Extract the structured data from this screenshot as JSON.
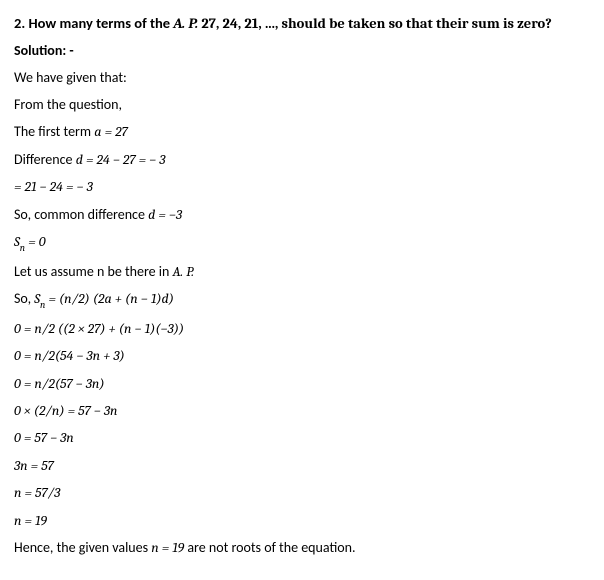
{
  "question": {
    "prefix": "2. How many terms of the ",
    "ap_label": "A. P.",
    "sequence": " 27, 24, 21, ..., should be taken so that their sum is zero?"
  },
  "solution_label": "Solution: -",
  "lines": {
    "l1": "We have given that:",
    "l2": "From the question,",
    "l3_a": "The first term ",
    "l3_b": "a  =  27",
    "l4_a": "Difference ",
    "l4_b": "d  =  24 − 27  = − 3",
    "l5": "=  21 − 24  = − 3",
    "l6_a": "So, common difference ",
    "l6_b": "d  =  −3",
    "l7_a": "S",
    "l7_b": "n",
    "l7_c": "  =  0",
    "l8_a": "Let us assume n be there in ",
    "l8_b": "A. P.",
    "l9_a": "So, ",
    "l9_b": "S",
    "l9_c": "n",
    "l9_d": "  =  (n/2) (2a + (n − 1)d)",
    "l10": "0  =  n/2 ((2 × 27) + (n − 1)(−3))",
    "l11": "0  =  n/2(54 − 3n + 3)",
    "l12": "0  =  n/2(57 − 3n)",
    "l13": "0 × (2/n)  =  57 − 3n",
    "l14": "0  =  57 − 3n",
    "l15": "3n  =  57",
    "l16": "n  =  57/3",
    "l17": "n  =  19",
    "l18_a": "Hence, the given values ",
    "l18_b": "n = 19",
    "l18_c": " are not roots of the equation."
  }
}
